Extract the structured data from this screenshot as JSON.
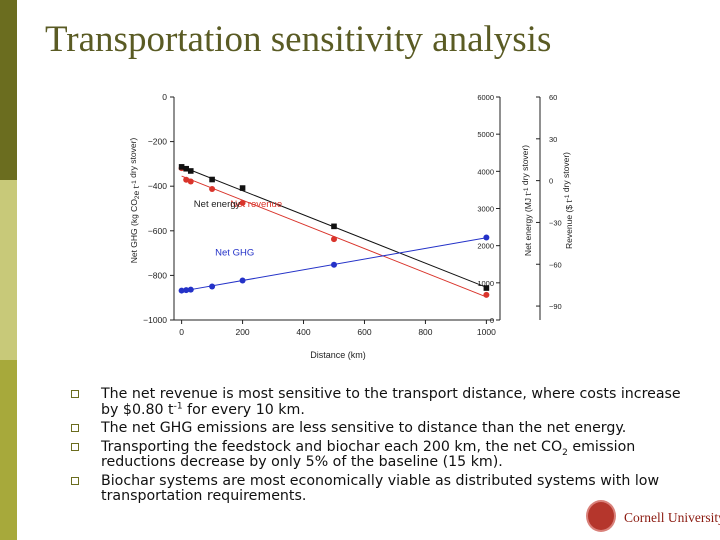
{
  "slide": {
    "title": "Transportation sensitivity analysis"
  },
  "colors": {
    "revenue": "#d9342b",
    "energy": "#111111",
    "ghg": "#2432c8",
    "accent": "#6b6d1f"
  },
  "chart_data": {
    "type": "scatter",
    "xlabel": "Distance (km)",
    "xlim": [
      -25,
      1025
    ],
    "xticks": [
      0,
      200,
      400,
      600,
      800,
      1000
    ],
    "axes": {
      "left": {
        "label": "Net GHG (kg CO2e t-1 dry stover)",
        "label_main": "Net GHG (kg CO",
        "label_sub": "2",
        "label_mid": "e t",
        "label_sup": "-1",
        "label_tail": " dry stover)",
        "lim": [
          -1000,
          0
        ],
        "ticks": [
          0,
          -200,
          -400,
          -600,
          -800,
          -1000
        ]
      },
      "middle": {
        "label": "Net energy (MJ t-1 dry stover)",
        "label_main": "Net energy (MJ t",
        "label_sup": "-1",
        "label_tail": " dry stover)",
        "lim": [
          0,
          6000
        ],
        "ticks": [
          0,
          1000,
          2000,
          3000,
          4000,
          5000,
          6000
        ]
      },
      "right": {
        "label": "Revenue ($ t-1 dry stover)",
        "label_main": "Revenue ($ t",
        "label_sup": "-1",
        "label_tail": " dry stover)",
        "lim": [
          -100,
          60
        ],
        "ticks": [
          60,
          30,
          0,
          -30,
          -60,
          -90
        ]
      }
    },
    "series": [
      {
        "name": "Net revenue",
        "axis": "right",
        "color": "#d9342b",
        "marker": "circle",
        "x": [
          0,
          15,
          30,
          100,
          200,
          500,
          1000
        ],
        "y": [
          9,
          0.6,
          -0.6,
          -6,
          -16,
          -42,
          -82
        ]
      },
      {
        "name": "Net energy",
        "axis": "middle",
        "color": "#111111",
        "marker": "square",
        "x": [
          0,
          15,
          30,
          100,
          200,
          500,
          1000
        ],
        "y": [
          4120,
          4070,
          4010,
          3780,
          3550,
          2520,
          860
        ]
      },
      {
        "name": "Net GHG",
        "axis": "left",
        "color": "#2432c8",
        "marker": "circle",
        "x": [
          0,
          15,
          30,
          100,
          200,
          500,
          1000
        ],
        "y": [
          -868,
          -866,
          -864,
          -850,
          -823,
          -752,
          -630
        ]
      }
    ],
    "annotations": [
      {
        "text": "Net revenue",
        "x": 160,
        "y": -19
      },
      {
        "text": "Net energy",
        "x": 40,
        "y": 3040
      },
      {
        "text": "Net GHG",
        "x": 110,
        "y": -710
      }
    ]
  },
  "bullets": [
    {
      "pre": "The net revenue is most sensitive to the transport distance, where costs increase by $0.80 t",
      "sup": "-1",
      "post": " for every 10 km."
    },
    {
      "text": "The net GHG emissions are less sensitive to distance than the net energy."
    },
    {
      "pre": "Transporting the feedstock and biochar each 200 km, the net CO",
      "sub": "2",
      "post": " emission reductions decrease by only 5% of the baseline (15 km)."
    },
    {
      "text": "Biochar systems are most economically viable as distributed systems with low transportation requirements."
    }
  ],
  "logo": {
    "text": "Cornell University",
    "icon": "cornell-seal-icon"
  }
}
